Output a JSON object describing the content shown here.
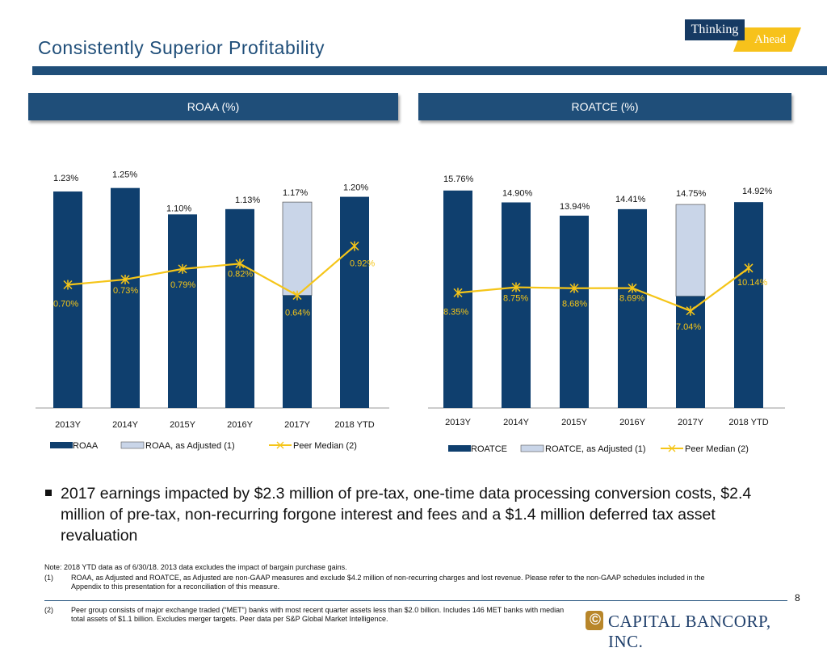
{
  "header": {
    "title": "Consistently Superior Profitability",
    "badge_line1": "Thinking",
    "badge_line2": "Ahead"
  },
  "colors": {
    "navy": "#0f3f6e",
    "adjusted": "#c9d5e8",
    "peer": "#f5c518"
  },
  "chart_data": [
    {
      "type": "bar",
      "title": "ROAA (%)",
      "categories": [
        "2013Y",
        "2014Y",
        "2015Y",
        "2016Y",
        "2017Y",
        "2018 YTD"
      ],
      "series": [
        {
          "name": "ROAA",
          "values": [
            1.23,
            1.25,
            1.1,
            1.13,
            0.64,
            1.2
          ],
          "labels": [
            "1.23%",
            "1.25%",
            "1.10%",
            "1.13%",
            "",
            "1.20%"
          ]
        },
        {
          "name": "ROAA, as Adjusted (1)",
          "values": [
            null,
            null,
            null,
            null,
            1.17,
            null
          ],
          "labels": [
            "",
            "",
            "",
            "",
            "1.17%",
            ""
          ]
        },
        {
          "name": "Peer Median (2)",
          "type": "line",
          "values": [
            0.7,
            0.73,
            0.79,
            0.82,
            0.64,
            0.92
          ],
          "labels": [
            "0.70%",
            "0.73%",
            "0.79%",
            "0.82%",
            "0.64%",
            "0.92%"
          ]
        }
      ],
      "ylim": [
        0,
        1.4
      ],
      "legend": [
        "ROAA",
        "ROAA, as Adjusted (1)",
        "Peer Median (2)"
      ]
    },
    {
      "type": "bar",
      "title": "ROATCE (%)",
      "categories": [
        "2013Y",
        "2014Y",
        "2015Y",
        "2016Y",
        "2017Y",
        "2018 YTD"
      ],
      "series": [
        {
          "name": "ROATCE",
          "values": [
            15.76,
            14.9,
            13.94,
            14.41,
            8.1,
            14.92
          ],
          "labels": [
            "15.76%",
            "14.90%",
            "13.94%",
            "14.41%",
            "",
            "14.92%"
          ]
        },
        {
          "name": "ROATCE, as Adjusted (1)",
          "values": [
            null,
            null,
            null,
            null,
            14.75,
            null
          ],
          "labels": [
            "",
            "",
            "",
            "",
            "14.75%",
            ""
          ]
        },
        {
          "name": "Peer Median (2)",
          "type": "line",
          "values": [
            8.35,
            8.75,
            8.68,
            8.69,
            7.04,
            10.14
          ],
          "labels": [
            "8.35%",
            "8.75%",
            "8.68%",
            "8.69%",
            "7.04%",
            "10.14%"
          ]
        }
      ],
      "ylim": [
        0,
        17.5
      ],
      "legend": [
        "ROATCE",
        "ROATCE, as Adjusted (1)",
        "Peer Median (2)"
      ]
    }
  ],
  "bullet": "2017 earnings impacted by $2.3 million of pre-tax, one-time data processing conversion costs, $2.4 million of pre-tax, non-recurring forgone interest and fees and a $1.4 million deferred tax asset revaluation",
  "footnotes": {
    "note": "Note: 2018 YTD data as of 6/30/18. 2013 data excludes the impact of bargain purchase gains.",
    "fn1_num": "(1)",
    "fn1_text": "ROAA, as Adjusted and ROATCE, as Adjusted are non-GAAP measures and exclude $4.2 million of non-recurring charges and lost revenue. Please refer to the non-GAAP schedules included in the Appendix to this presentation for a reconciliation of this measure.",
    "fn2_num": "(2)",
    "fn2_text": "Peer group consists of major exchange traded (“MET”) banks with most recent quarter assets less than $2.0 billion. Includes 146 MET banks with median total assets of $1.1 billion. Excludes merger targets. Peer data per S&P Global Market Intelligence."
  },
  "page_number": "8",
  "logo": {
    "mark": "©",
    "text": "CAPITAL BANCORP, INC."
  }
}
